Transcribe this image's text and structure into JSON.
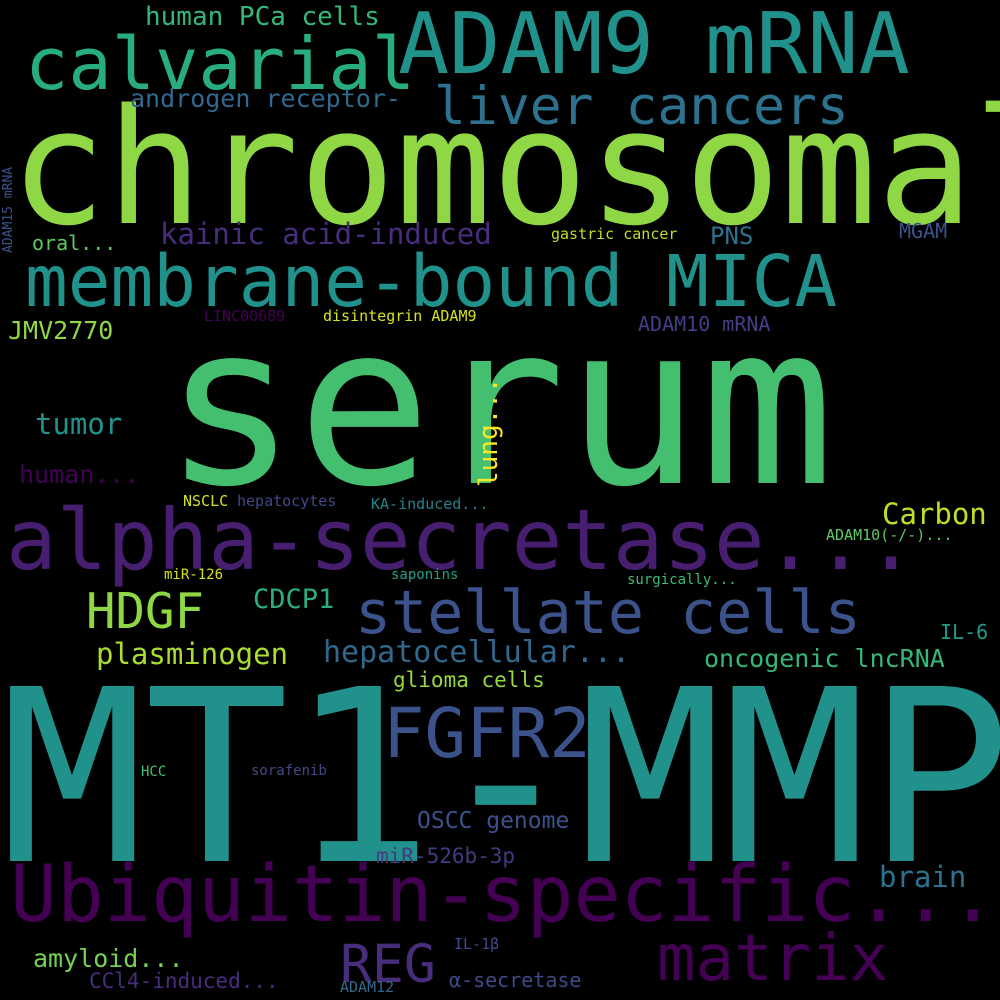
{
  "background": "#000000",
  "words": [
    {
      "text": "MT1-MMP",
      "color": "#21918c"
    },
    {
      "text": "serum",
      "color": "#44bf70"
    },
    {
      "text": "chromosomal",
      "color": "#8fd744"
    },
    {
      "text": "ADAM9 mRNA",
      "color": "#21918c"
    },
    {
      "text": "Ubiquitin-specific...",
      "color": "#440154"
    },
    {
      "text": "alpha-secretase...",
      "color": "#481f70"
    },
    {
      "text": "membrane-bound MICA",
      "color": "#21918c"
    },
    {
      "text": "calvarial",
      "color": "#27ad81"
    },
    {
      "text": "liver cancers",
      "color": "#2c728e"
    },
    {
      "text": "stellate cells",
      "color": "#3b528b"
    },
    {
      "text": "FGFR2",
      "color": "#3b528b"
    },
    {
      "text": "matrix",
      "color": "#440154"
    },
    {
      "text": "HDGF",
      "color": "#8fd744"
    },
    {
      "text": "REG",
      "color": "#472d7b"
    },
    {
      "text": "human PCa cells",
      "color": "#35b779"
    },
    {
      "text": "androgen receptor-",
      "color": "#31688e"
    },
    {
      "text": "kainic acid-induced",
      "color": "#472d7b"
    },
    {
      "text": "hepatocellular...",
      "color": "#31688e"
    },
    {
      "text": "Carbon",
      "color": "#bddf26"
    },
    {
      "text": "CDCP1",
      "color": "#28ae80"
    },
    {
      "text": "plasminogen",
      "color": "#aadc32"
    },
    {
      "text": "oncogenic lncRNA",
      "color": "#35b779"
    },
    {
      "text": "lung...",
      "color": "#fde725"
    },
    {
      "text": "brain",
      "color": "#2c728e"
    },
    {
      "text": "tumor",
      "color": "#21918c"
    },
    {
      "text": "amyloid...",
      "color": "#75d054"
    },
    {
      "text": "glioma cells",
      "color": "#95d840"
    },
    {
      "text": "OSCC genome",
      "color": "#3b528b"
    },
    {
      "text": "miR-526b-3p",
      "color": "#443983"
    },
    {
      "text": "JMV2770",
      "color": "#90d743"
    },
    {
      "text": "human...",
      "color": "#440154"
    },
    {
      "text": "PNS",
      "color": "#2c728e"
    },
    {
      "text": "ADAM10 mRNA",
      "color": "#433e85"
    },
    {
      "text": "oral...",
      "color": "#5ec962"
    },
    {
      "text": "MGAM",
      "color": "#3b528b"
    },
    {
      "text": "IL-6",
      "color": "#1f9a8a"
    },
    {
      "text": "CCl4-induced...",
      "color": "#472d7b"
    },
    {
      "text": "α-secretase",
      "color": "#3e4a89"
    },
    {
      "text": "ADAM12",
      "color": "#31688e"
    },
    {
      "text": "IL-1β",
      "color": "#3e4a89"
    },
    {
      "text": "gastric cancer",
      "color": "#bddf26"
    },
    {
      "text": "disintegrin ADAM9",
      "color": "#d8e219"
    },
    {
      "text": "LINC00689",
      "color": "#440154"
    },
    {
      "text": "NSCLC",
      "color": "#d2e21b"
    },
    {
      "text": "hepatocytes",
      "color": "#3e4a89"
    },
    {
      "text": "KA-induced...",
      "color": "#26828e"
    },
    {
      "text": "ADAM10(-/-)...",
      "color": "#5ec962"
    },
    {
      "text": "miR-126",
      "color": "#d8e219"
    },
    {
      "text": "saponins",
      "color": "#1fa187"
    },
    {
      "text": "surgically...",
      "color": "#3dbc74"
    },
    {
      "text": "HCC",
      "color": "#44bf70"
    },
    {
      "text": "sorafenib",
      "color": "#3e4a89"
    },
    {
      "text": "ADAM15 mRNA",
      "color": "#3b528b"
    }
  ]
}
